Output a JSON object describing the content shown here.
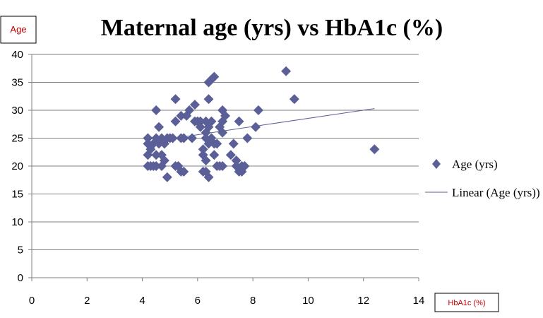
{
  "chart_data": {
    "type": "scatter",
    "title": "Maternal age (yrs) vs HbA1c (%)",
    "xlabel": "HbA1c (%)",
    "ylabel": "Age",
    "xlim": [
      0,
      14
    ],
    "ylim": [
      0,
      40
    ],
    "xticks": [
      0,
      2,
      4,
      6,
      8,
      10,
      12,
      14
    ],
    "yticks": [
      0,
      5,
      10,
      15,
      20,
      25,
      30,
      35,
      40
    ],
    "grid": "horizontal",
    "legend_position": "right",
    "series": [
      {
        "name": "Age (yrs)",
        "marker": "diamond",
        "color": "#5b5f97",
        "points": [
          [
            4.2,
            20
          ],
          [
            4.2,
            22
          ],
          [
            4.2,
            24
          ],
          [
            4.2,
            25
          ],
          [
            4.3,
            20
          ],
          [
            4.3,
            23
          ],
          [
            4.4,
            24
          ],
          [
            4.4,
            20
          ],
          [
            4.5,
            20
          ],
          [
            4.5,
            30
          ],
          [
            4.5,
            25
          ],
          [
            4.5,
            22
          ],
          [
            4.6,
            27
          ],
          [
            4.6,
            24
          ],
          [
            4.7,
            25
          ],
          [
            4.7,
            22
          ],
          [
            4.7,
            20
          ],
          [
            4.8,
            24
          ],
          [
            4.8,
            21
          ],
          [
            4.9,
            25
          ],
          [
            4.9,
            18
          ],
          [
            5.0,
            25
          ],
          [
            5.1,
            25
          ],
          [
            5.2,
            28
          ],
          [
            5.2,
            20
          ],
          [
            5.2,
            32
          ],
          [
            5.3,
            20
          ],
          [
            5.4,
            29
          ],
          [
            5.4,
            25
          ],
          [
            5.4,
            19
          ],
          [
            5.5,
            25
          ],
          [
            5.5,
            19
          ],
          [
            5.6,
            29
          ],
          [
            5.7,
            30
          ],
          [
            5.8,
            25
          ],
          [
            5.9,
            31
          ],
          [
            5.9,
            28
          ],
          [
            6.0,
            28
          ],
          [
            6.1,
            27
          ],
          [
            6.1,
            28
          ],
          [
            6.2,
            23
          ],
          [
            6.2,
            19
          ],
          [
            6.2,
            22
          ],
          [
            6.3,
            28
          ],
          [
            6.3,
            21
          ],
          [
            6.3,
            26
          ],
          [
            6.3,
            25
          ],
          [
            6.3,
            19
          ],
          [
            6.4,
            32
          ],
          [
            6.4,
            35
          ],
          [
            6.4,
            27
          ],
          [
            6.4,
            24
          ],
          [
            6.4,
            18
          ],
          [
            6.5,
            35.5
          ],
          [
            6.5,
            28
          ],
          [
            6.5,
            25
          ],
          [
            6.6,
            36
          ],
          [
            6.6,
            24
          ],
          [
            6.6,
            22
          ],
          [
            6.7,
            24
          ],
          [
            6.7,
            20
          ],
          [
            6.8,
            27
          ],
          [
            6.8,
            20
          ],
          [
            6.9,
            30
          ],
          [
            6.9,
            28
          ],
          [
            6.9,
            26
          ],
          [
            6.9,
            20
          ],
          [
            7.0,
            29
          ],
          [
            7.2,
            22
          ],
          [
            7.3,
            24
          ],
          [
            7.4,
            20
          ],
          [
            7.4,
            21
          ],
          [
            7.5,
            19
          ],
          [
            7.5,
            28
          ],
          [
            7.6,
            19
          ],
          [
            7.6,
            20
          ],
          [
            7.7,
            20
          ],
          [
            7.8,
            25
          ],
          [
            8.1,
            27
          ],
          [
            8.2,
            30
          ],
          [
            9.2,
            37
          ],
          [
            9.5,
            32
          ],
          [
            12.4,
            23
          ]
        ]
      }
    ],
    "trendline": {
      "name": "Linear (Age (yrs))",
      "color": "#5b5f97",
      "from": [
        4.2,
        24.3
      ],
      "to": [
        12.4,
        30.3
      ]
    }
  }
}
